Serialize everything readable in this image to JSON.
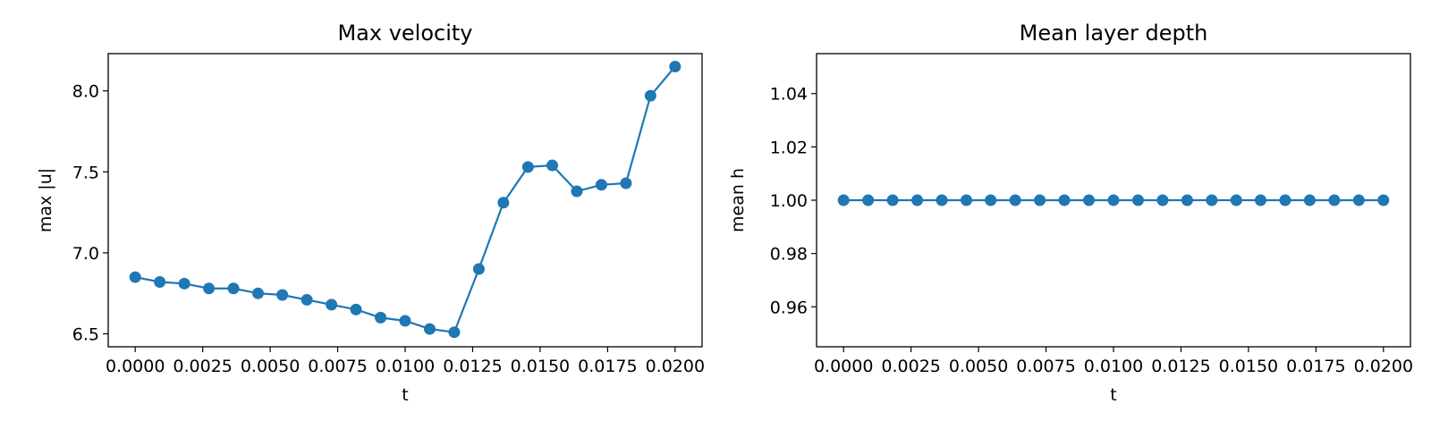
{
  "chart_data": [
    {
      "type": "line",
      "title": "Max velocity",
      "xlabel": "t",
      "ylabel": "max |u|",
      "xlim": [
        -0.001,
        0.021
      ],
      "ylim": [
        6.42,
        8.23
      ],
      "xticks": [
        0.0,
        0.0025,
        0.005,
        0.0075,
        0.01,
        0.0125,
        0.015,
        0.0175,
        0.02
      ],
      "xtick_labels": [
        "0.0000",
        "0.0025",
        "0.0050",
        "0.0075",
        "0.0100",
        "0.0125",
        "0.0150",
        "0.0175",
        "0.0200"
      ],
      "yticks": [
        6.5,
        7.0,
        7.5,
        8.0
      ],
      "ytick_labels": [
        "6.5",
        "7.0",
        "7.5",
        "8.0"
      ],
      "grid": false,
      "color": "#1f77b4",
      "series": [
        {
          "x": [
            0.0,
            0.00091,
            0.00182,
            0.00273,
            0.00364,
            0.00455,
            0.00545,
            0.00636,
            0.00727,
            0.00818,
            0.00909,
            0.01,
            0.01091,
            0.01182,
            0.01273,
            0.01364,
            0.01455,
            0.01545,
            0.01636,
            0.01727,
            0.01818,
            0.01909,
            0.02
          ],
          "y": [
            6.85,
            6.82,
            6.81,
            6.78,
            6.78,
            6.75,
            6.74,
            6.71,
            6.68,
            6.65,
            6.6,
            6.58,
            6.53,
            6.51,
            6.9,
            7.31,
            7.53,
            7.54,
            7.38,
            7.42,
            7.43,
            7.97,
            8.15
          ]
        }
      ]
    },
    {
      "type": "line",
      "title": "Mean layer depth",
      "xlabel": "t",
      "ylabel": "mean h",
      "xlim": [
        -0.001,
        0.021
      ],
      "ylim": [
        0.945,
        1.055
      ],
      "xticks": [
        0.0,
        0.0025,
        0.005,
        0.0075,
        0.01,
        0.0125,
        0.015,
        0.0175,
        0.02
      ],
      "xtick_labels": [
        "0.0000",
        "0.0025",
        "0.0050",
        "0.0075",
        "0.0100",
        "0.0125",
        "0.0150",
        "0.0175",
        "0.0200"
      ],
      "yticks": [
        0.96,
        0.98,
        1.0,
        1.02,
        1.04
      ],
      "ytick_labels": [
        "0.96",
        "0.98",
        "1.00",
        "1.02",
        "1.04"
      ],
      "grid": false,
      "color": "#1f77b4",
      "series": [
        {
          "x": [
            0.0,
            0.00091,
            0.00182,
            0.00273,
            0.00364,
            0.00455,
            0.00545,
            0.00636,
            0.00727,
            0.00818,
            0.00909,
            0.01,
            0.01091,
            0.01182,
            0.01273,
            0.01364,
            0.01455,
            0.01545,
            0.01636,
            0.01727,
            0.01818,
            0.01909,
            0.02
          ],
          "y": [
            1.0,
            1.0,
            1.0,
            1.0,
            1.0,
            1.0,
            1.0,
            1.0,
            1.0,
            1.0,
            1.0,
            1.0,
            1.0,
            1.0,
            1.0,
            1.0,
            1.0,
            1.0,
            1.0,
            1.0,
            1.0,
            1.0,
            1.0
          ]
        }
      ]
    }
  ]
}
